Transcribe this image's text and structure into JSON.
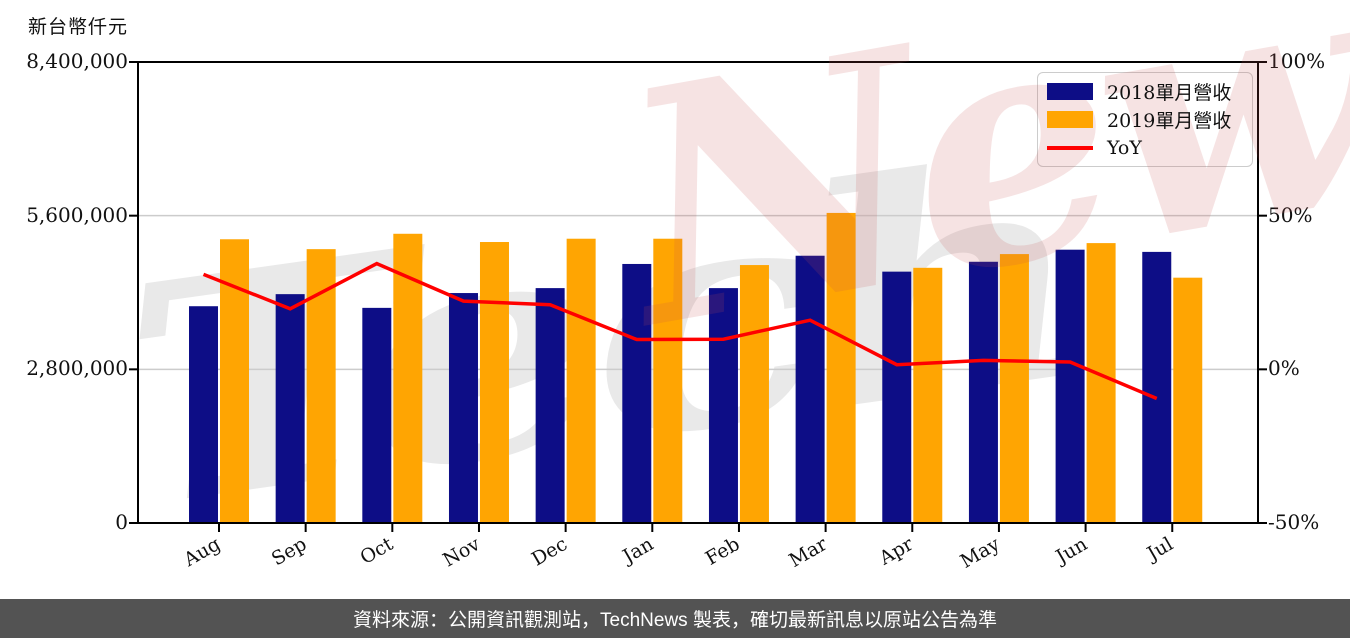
{
  "header": {
    "unit_label": "新台幣仟元"
  },
  "watermark": {
    "part1": "Tech",
    "part2": "News"
  },
  "footer": {
    "source_text": "資料來源：公開資訊觀測站，TechNews 製表，確切最新訊息以原站公告為準"
  },
  "colors": {
    "bar_2018": "#0d0d86",
    "bar_2019": "#ffa502",
    "yoy_line": "#ff0000",
    "grid": "#cccccc",
    "axis": "#000000",
    "footer_bg": "#535353",
    "footer_text": "#ffffff",
    "watermark_gray": "#e9e9e9",
    "watermark_pink": "rgba(200,80,80,0.16)",
    "legend_border": "#cccccc"
  },
  "chart_data": {
    "type": "bar",
    "title": "",
    "unit": "新台幣仟元",
    "categories": [
      "Aug",
      "Sep",
      "Oct",
      "Nov",
      "Dec",
      "Jan",
      "Feb",
      "Mar",
      "Apr",
      "May",
      "Jun",
      "Jul"
    ],
    "series": [
      {
        "name": "2018單月營收",
        "type": "bar",
        "axis": "left",
        "color": "#0d0d86",
        "values": [
          3950000,
          4170000,
          3920000,
          4190000,
          4280000,
          4720000,
          4280000,
          4870000,
          4580000,
          4760000,
          4980000,
          4940000
        ]
      },
      {
        "name": "2019單月營收",
        "type": "bar",
        "axis": "left",
        "color": "#ffa502",
        "values": [
          5170000,
          4990000,
          5270000,
          5120000,
          5180000,
          5180000,
          4700000,
          5650000,
          4650000,
          4900000,
          5100000,
          4470000
        ]
      },
      {
        "name": "YoY",
        "type": "line",
        "axis": "right",
        "color": "#ff0000",
        "unit": "%",
        "values": [
          30.9,
          19.7,
          34.4,
          22.2,
          21.0,
          9.7,
          9.8,
          16.0,
          1.5,
          2.9,
          2.4,
          -9.5
        ]
      }
    ],
    "left_axis": {
      "label": "新台幣仟元",
      "min": 0,
      "max": 8400000,
      "ticks": [
        {
          "value": 8400000,
          "label": "8,400,000"
        },
        {
          "value": 5600000,
          "label": "5,600,000"
        },
        {
          "value": 2800000,
          "label": "2,800,000"
        },
        {
          "value": 0,
          "label": "0"
        }
      ]
    },
    "right_axis": {
      "min": -50,
      "max": 100,
      "unit": "%",
      "ticks": [
        {
          "value": 100,
          "label": "100%"
        },
        {
          "value": 50,
          "label": "50%"
        },
        {
          "value": 0,
          "label": "0%"
        },
        {
          "value": -50,
          "label": "-50%"
        }
      ]
    },
    "legend": {
      "position": "top-right",
      "entries": [
        "2018單月營收",
        "2019單月營收",
        "YoY"
      ]
    },
    "grid": "horizontal"
  }
}
